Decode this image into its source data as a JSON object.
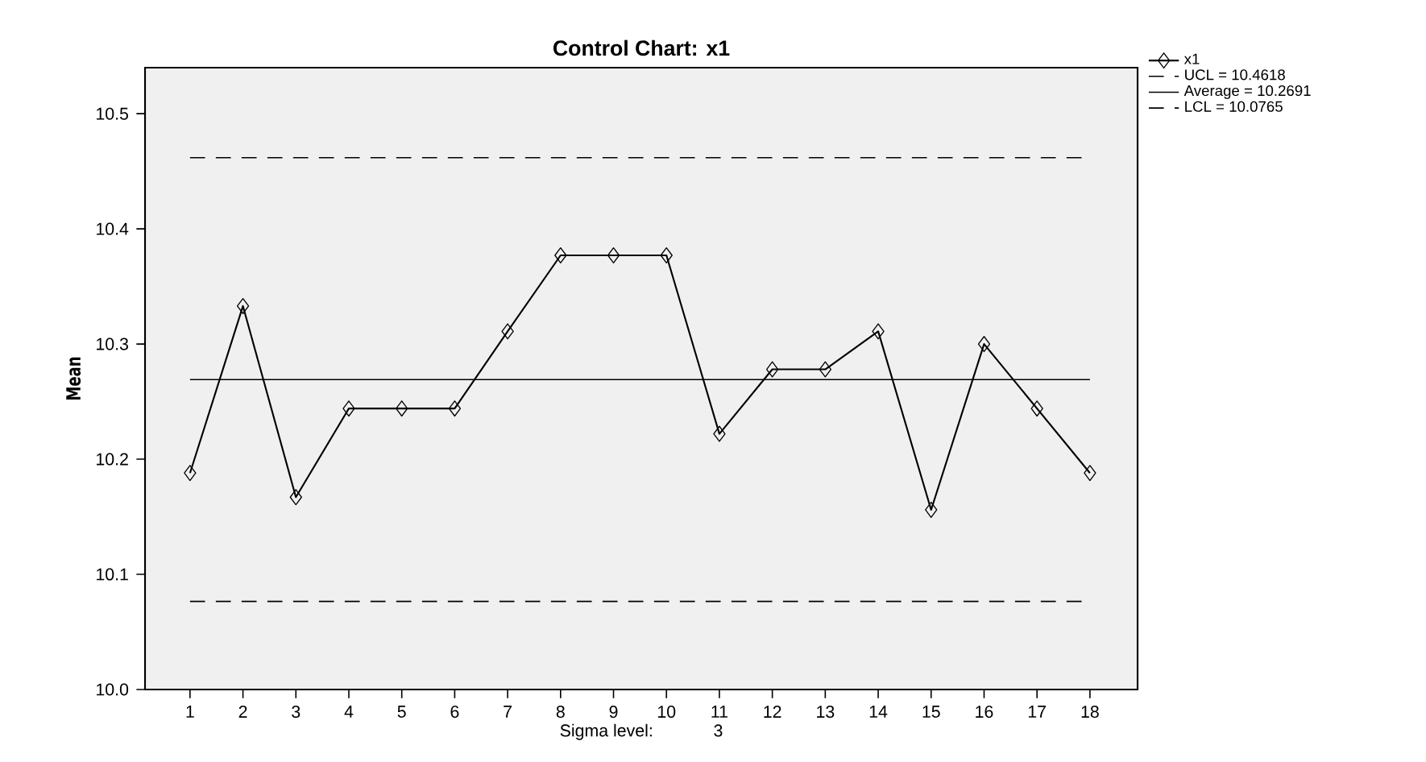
{
  "chart_data": {
    "type": "line",
    "title": "Control Chart: x1",
    "xlabel": "Sigma level:",
    "ylabel": "Mean",
    "annotations": [
      "3"
    ],
    "categories": [
      "1",
      "2",
      "3",
      "4",
      "5",
      "6",
      "7",
      "8",
      "9",
      "10",
      "11",
      "12",
      "13",
      "14",
      "15",
      "16",
      "17",
      "18"
    ],
    "series": [
      {
        "name": "x1",
        "color": "#000000",
        "values": [
          10.188,
          10.333,
          10.167,
          10.244,
          10.244,
          10.244,
          10.311,
          10.377,
          10.377,
          10.377,
          10.222,
          10.278,
          10.278,
          10.311,
          10.156,
          10.3,
          10.244,
          10.188
        ]
      }
    ],
    "marker": "diamond",
    "line_style": "solid",
    "ylim": [
      10.0,
      10.54
    ],
    "yticks": [
      {
        "value": 10.0,
        "label": "10.0"
      },
      {
        "value": 10.1,
        "label": "10.1"
      },
      {
        "value": 10.2,
        "label": "10.2"
      },
      {
        "value": 10.3,
        "label": "10.3"
      },
      {
        "value": 10.4,
        "label": "10.4"
      },
      {
        "value": 10.5,
        "label": "10.5"
      }
    ],
    "ref_lines": [
      {
        "axis": "y",
        "value": 10.4618,
        "label": "UCL = 10.4618",
        "color": "#000000",
        "line_style": "dashed"
      },
      {
        "axis": "y",
        "value": 10.2691,
        "label": "Average = 10.2691",
        "color": "#000000",
        "line_style": "solid"
      },
      {
        "axis": "y",
        "value": 10.0765,
        "label": "LCL = 10.0765",
        "color": "#000000",
        "line_style": "dashed"
      }
    ],
    "grid": false,
    "legend": "top right"
  }
}
